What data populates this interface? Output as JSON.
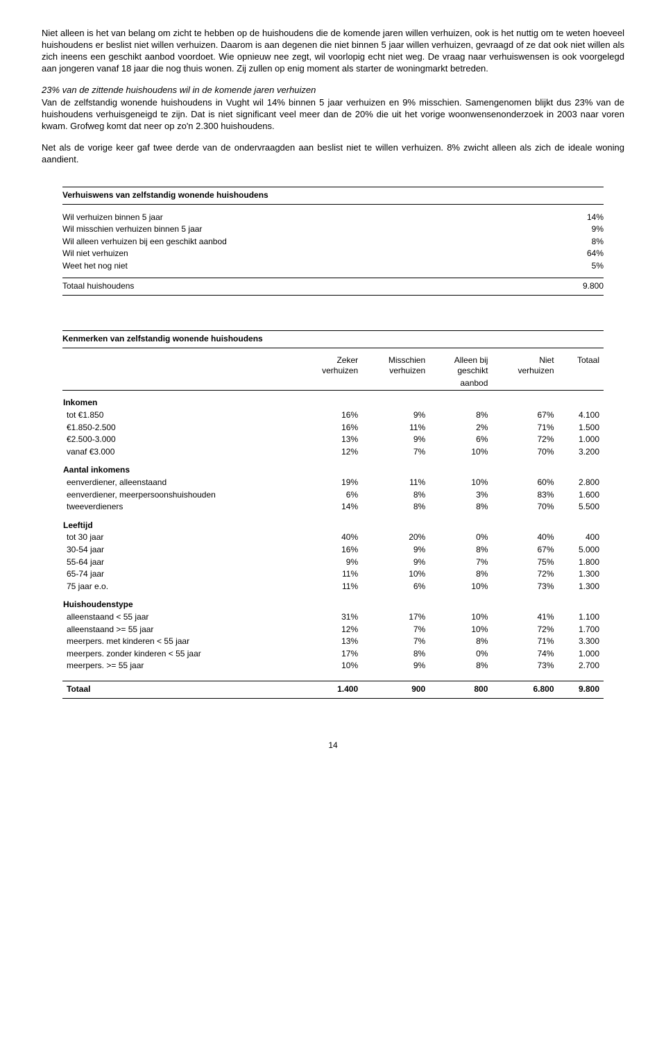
{
  "para1": "Niet alleen is het van belang om zicht te hebben op de huishoudens die de komende jaren willen verhuizen, ook is het nuttig om te weten hoeveel huishoudens er beslist niet willen verhuizen. Daarom is aan degenen die niet binnen 5 jaar willen verhuizen, gevraagd of ze dat ook niet willen als zich ineens een geschikt aanbod voordoet. Wie opnieuw nee zegt, wil voorlopig echt niet weg. De vraag naar verhuiswensen is ook voorgelegd aan jongeren vanaf 18 jaar die nog thuis wonen. Zij zullen op enig moment als starter de woningmarkt betreden.",
  "heading2": "23% van de zittende huishoudens wil in de komende jaren verhuizen",
  "para2a": "Van de zelfstandig wonende huishoudens in Vught wil 14% binnen 5 jaar verhuizen en 9% misschien. Samengenomen blijkt dus 23% van de huishoudens verhuisgeneigd te zijn. Dat is niet significant veel meer dan de 20% die uit het vorige woonwensenonderzoek in 2003 naar voren kwam. Grofweg komt dat neer op zo'n 2.300 huishoudens.",
  "para2b": "Net als de vorige keer gaf twee derde van de ondervraagden aan beslist niet te willen verhuizen. 8% zwicht alleen als zich de ideale woning aandient.",
  "table1": {
    "title": "Verhuiswens van zelfstandig wonende huishoudens",
    "rows": [
      {
        "label": "Wil verhuizen binnen 5 jaar",
        "pct": "14%"
      },
      {
        "label": "Wil misschien verhuizen binnen 5 jaar",
        "pct": "9%"
      },
      {
        "label": "Wil alleen verhuizen bij een geschikt aanbod",
        "pct": "8%"
      },
      {
        "label": "Wil niet verhuizen",
        "pct": "64%"
      },
      {
        "label": "Weet het nog niet",
        "pct": "5%"
      }
    ],
    "total_label": "Totaal huishoudens",
    "total_value": "9.800"
  },
  "table2": {
    "title": "Kenmerken van zelfstandig wonende huishoudens",
    "headers": {
      "c1a": "Zeker",
      "c1b": "verhuizen",
      "c2a": "Misschien",
      "c2b": "verhuizen",
      "c3a": "Alleen bij",
      "c3b": "geschikt",
      "c3c": "aanbod",
      "c4a": "Niet",
      "c4b": "verhuizen",
      "c5a": "Totaal"
    },
    "sections": [
      {
        "name": "Inkomen",
        "rows": [
          {
            "label": "tot €1.850",
            "v": [
              "16%",
              "9%",
              "8%",
              "67%",
              "4.100"
            ]
          },
          {
            "label": "€1.850-2.500",
            "v": [
              "16%",
              "11%",
              "2%",
              "71%",
              "1.500"
            ]
          },
          {
            "label": "€2.500-3.000",
            "v": [
              "13%",
              "9%",
              "6%",
              "72%",
              "1.000"
            ]
          },
          {
            "label": "vanaf €3.000",
            "v": [
              "12%",
              "7%",
              "10%",
              "70%",
              "3.200"
            ]
          }
        ]
      },
      {
        "name": "Aantal inkomens",
        "rows": [
          {
            "label": "eenverdiener, alleenstaand",
            "v": [
              "19%",
              "11%",
              "10%",
              "60%",
              "2.800"
            ]
          },
          {
            "label": "eenverdiener, meerpersoonshuishouden",
            "v": [
              "6%",
              "8%",
              "3%",
              "83%",
              "1.600"
            ]
          },
          {
            "label": "tweeverdieners",
            "v": [
              "14%",
              "8%",
              "8%",
              "70%",
              "5.500"
            ]
          }
        ]
      },
      {
        "name": "Leeftijd",
        "rows": [
          {
            "label": "tot 30 jaar",
            "v": [
              "40%",
              "20%",
              "0%",
              "40%",
              "400"
            ]
          },
          {
            "label": "30-54 jaar",
            "v": [
              "16%",
              "9%",
              "8%",
              "67%",
              "5.000"
            ]
          },
          {
            "label": "55-64 jaar",
            "v": [
              "9%",
              "9%",
              "7%",
              "75%",
              "1.800"
            ]
          },
          {
            "label": "65-74 jaar",
            "v": [
              "11%",
              "10%",
              "8%",
              "72%",
              "1.300"
            ]
          },
          {
            "label": "75 jaar e.o.",
            "v": [
              "11%",
              "6%",
              "10%",
              "73%",
              "1.300"
            ]
          }
        ]
      },
      {
        "name": "Huishoudenstype",
        "rows": [
          {
            "label": "alleenstaand < 55 jaar",
            "v": [
              "31%",
              "17%",
              "10%",
              "41%",
              "1.100"
            ]
          },
          {
            "label": "alleenstaand >= 55 jaar",
            "v": [
              "12%",
              "7%",
              "10%",
              "72%",
              "1.700"
            ]
          },
          {
            "label": "meerpers. met kinderen < 55 jaar",
            "v": [
              "13%",
              "7%",
              "8%",
              "71%",
              "3.300"
            ]
          },
          {
            "label": "meerpers. zonder kinderen < 55 jaar",
            "v": [
              "17%",
              "8%",
              "0%",
              "74%",
              "1.000"
            ]
          },
          {
            "label": "meerpers. >= 55 jaar",
            "v": [
              "10%",
              "9%",
              "8%",
              "73%",
              "2.700"
            ]
          }
        ]
      }
    ],
    "total": {
      "label": "Totaal",
      "v": [
        "1.400",
        "900",
        "800",
        "6.800",
        "9.800"
      ]
    }
  },
  "pagenum": "14"
}
